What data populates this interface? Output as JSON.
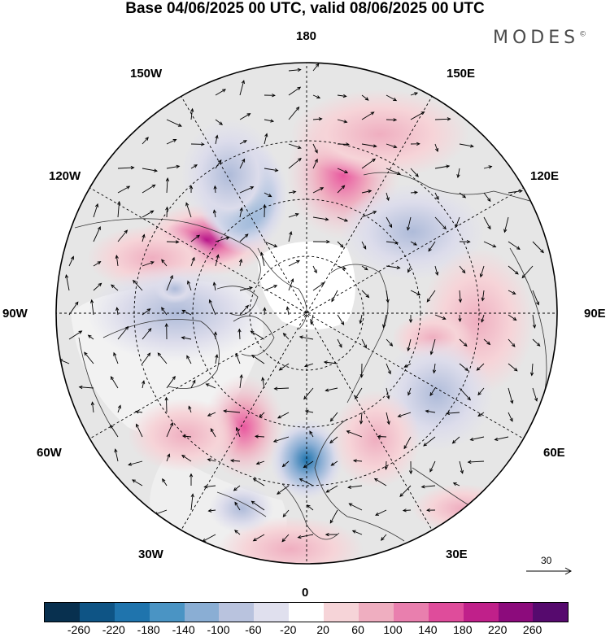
{
  "title": "Base 04/06/2025 00 UTC, valid 08/06/2025 00 UTC",
  "brand": "MODES",
  "brand_mark": "©",
  "longitudes": {
    "top": "180",
    "bottom": "0",
    "left": "90W",
    "right": "90E",
    "upper_left_1": "150W",
    "upper_left_2": "120W",
    "upper_right_1": "150E",
    "upper_right_2": "120E",
    "lower_left_1": "60W",
    "lower_left_2": "30W",
    "lower_right_1": "60E",
    "lower_right_2": "30E"
  },
  "reference_vector": "30",
  "colorbar": {
    "colors": [
      "#08304f",
      "#0e5485",
      "#1f74ad",
      "#4a94c4",
      "#8aaed4",
      "#b9c3de",
      "#e0e0ee",
      "#ffffff",
      "#f6d4d8",
      "#efaec0",
      "#e97fae",
      "#df4c9b",
      "#c0208a",
      "#8c0b7c",
      "#560a6e"
    ],
    "ticks": [
      "-260",
      "-220",
      "-180",
      "-140",
      "-100",
      "-60",
      "-20",
      "20",
      "60",
      "100",
      "140",
      "180",
      "220",
      "260"
    ]
  }
}
